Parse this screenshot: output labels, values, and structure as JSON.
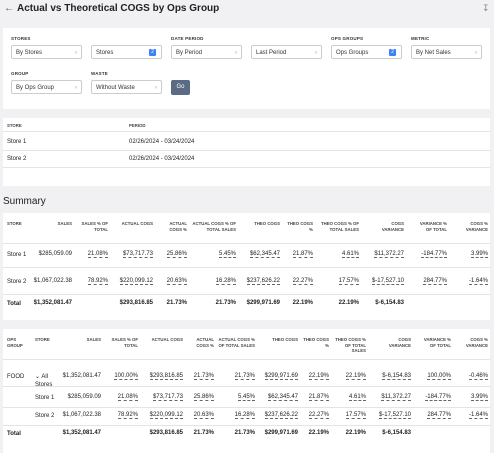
{
  "header": {
    "title": "Actual vs Theoretical COGS by Ops Group"
  },
  "filters": [
    {
      "label": "STORES",
      "value": "By Stores"
    },
    {
      "value": "Stores",
      "badge": "2"
    },
    {
      "label": "DATE PERIOD",
      "value": "By Period"
    },
    {
      "value": "Last Period"
    },
    {
      "label": "OPS GROUPS",
      "value": "Ops Groups",
      "badge": "2"
    },
    {
      "label": "METRIC",
      "value": "By Net Sales"
    },
    {
      "label": "GROUP",
      "value": "By Ops Group"
    },
    {
      "label": "WASTE",
      "value": "Without Waste"
    }
  ],
  "go_button": "Go",
  "periods": {
    "headers": [
      "STORE",
      "PERIOD"
    ],
    "rows": [
      [
        "Store 1",
        "02/26/2024 - 03/24/2024"
      ],
      [
        "Store 2",
        "02/26/2024 - 03/24/2024"
      ]
    ]
  },
  "summary": {
    "title": "Summary"
  },
  "table1": {
    "headers": [
      "STORE",
      "SALES",
      "SALES % OF TOTAL",
      "ACTUAL COGS",
      "ACTUAL COGS %",
      "ACTUAL COGS % OF TOTAL SALES",
      "THEO COGS",
      "THEO COGS %",
      "THEO COGS % OF TOTAL SALES",
      "COGS VARIANCE",
      "VARIANCE % OF TOTAL",
      "COGS % VARIANCE"
    ],
    "rows": [
      [
        "Store 1",
        "$285,059.09",
        "21.08%",
        "$73,717.73",
        "25.86%",
        "5.45%",
        "$62,345.47",
        "21.87%",
        "4.61%",
        "$11,372.27",
        "-184.77%",
        "3.99%"
      ],
      [
        "Store 2",
        "$1,067,022.38",
        "78.92%",
        "$220,099.12",
        "20.63%",
        "16.28%",
        "$237,626.22",
        "22.27%",
        "17.57%",
        "$-17,527.10",
        "284.77%",
        "-1.64%"
      ],
      [
        "Total",
        "$1,352,081.47",
        null,
        "$293,816.85",
        "21.73%",
        "21.73%",
        "$299,971.69",
        "22.19%",
        "22.19%",
        "$-6,154.83",
        null,
        null
      ]
    ]
  },
  "table2": {
    "headers": [
      "OPS GROUP",
      "STORE",
      "SALES",
      "SALES % OF TOTAL",
      "ACTUAL COGS",
      "ACTUAL COGS %",
      "ACTUAL COGS % OF TOTAL SALES",
      "THEO COGS",
      "THEO COGS %",
      "THEO COGS % OF TOTAL SALES",
      "COGS VARIANCE",
      "VARIANCE % OF TOTAL",
      "COGS % VARIANCE"
    ],
    "rows": [
      [
        "FOOD",
        "All Stores",
        "$1,352,081.47",
        "100.00%",
        "$293,816.85",
        "21.73%",
        "21.73%",
        "$299,971.69",
        "22.19%",
        "22.19%",
        "$-6,154.83",
        "100.00%",
        "-0.46%"
      ],
      [
        null,
        "Store 1",
        "$285,059.09",
        "21.08%",
        "$73,717.73",
        "25.86%",
        "5.45%",
        "$62,345.47",
        "21.87%",
        "4.61%",
        "$11,372.27",
        "-184.77%",
        "3.99%"
      ],
      [
        null,
        "Store 2",
        "$1,067,022.38",
        "78.92%",
        "$220,099.12",
        "20.63%",
        "16.28%",
        "$237,626.22",
        "22.27%",
        "17.57%",
        "$-17,527.10",
        "284.77%",
        "-1.64%"
      ],
      [
        "Total",
        null,
        "$1,352,081.47",
        null,
        "$293,816.85",
        "21.73%",
        "21.73%",
        "$299,971.69",
        "22.19%",
        "22.19%",
        "$-6,154.83",
        null,
        null
      ]
    ]
  }
}
